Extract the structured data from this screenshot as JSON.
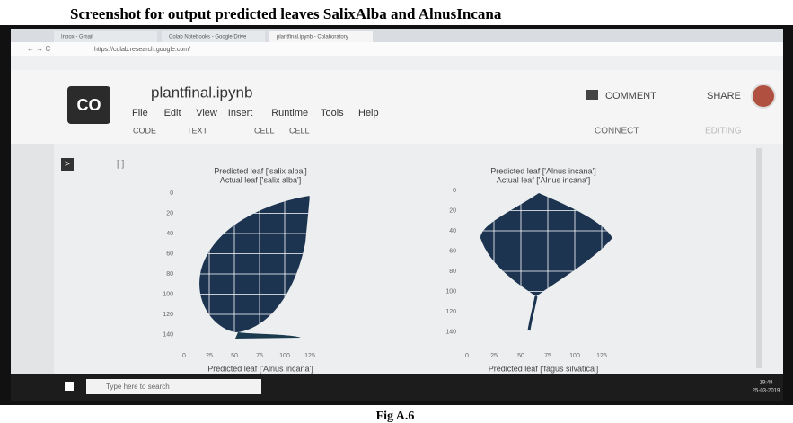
{
  "header": {
    "title": "Screenshot for output predicted leaves SalixAlba and AlnusIncana"
  },
  "browser": {
    "tabs": [
      "Inbox - Gmail",
      "Colab Notebooks - Google Drive",
      "plantfinal.ipynb - Colaboratory"
    ],
    "url": "https://colab.research.google.com/"
  },
  "colab": {
    "logo": "CO",
    "filename": "plantfinal.ipynb",
    "menu": [
      "File",
      "Edit",
      "View",
      "Insert",
      "Runtime",
      "Tools",
      "Help"
    ],
    "comment": "COMMENT",
    "share": "SHARE",
    "toolbar": [
      "CODE",
      "TEXT",
      "CELL",
      "CELL"
    ],
    "connect": "CONNECT",
    "editing": "EDITING"
  },
  "cell": {
    "bracket": "[ ]"
  },
  "plots": [
    {
      "title": [
        "Predicted leaf  ['salix alba']",
        "Actual leaf  ['salix alba']"
      ],
      "yticks": [
        0,
        20,
        40,
        60,
        80,
        100,
        120,
        140
      ],
      "xticks": [
        0,
        25,
        50,
        75,
        100,
        125
      ],
      "next_title": "Predicted leaf  ['Alnus incana']"
    },
    {
      "title": [
        "Predicted leaf  ['Alnus incana']",
        "Actual leaf  ['Alnus incana']"
      ],
      "yticks": [
        0,
        20,
        40,
        60,
        80,
        100,
        120,
        140
      ],
      "xticks": [
        0,
        25,
        50,
        75,
        100,
        125
      ],
      "next_title": "Predicted leaf  ['fagus silvatica']"
    }
  ],
  "taskbar": {
    "search": "Type here to search",
    "time": "19:48",
    "date": "25-03-2019"
  },
  "caption": "Fig A.6"
}
